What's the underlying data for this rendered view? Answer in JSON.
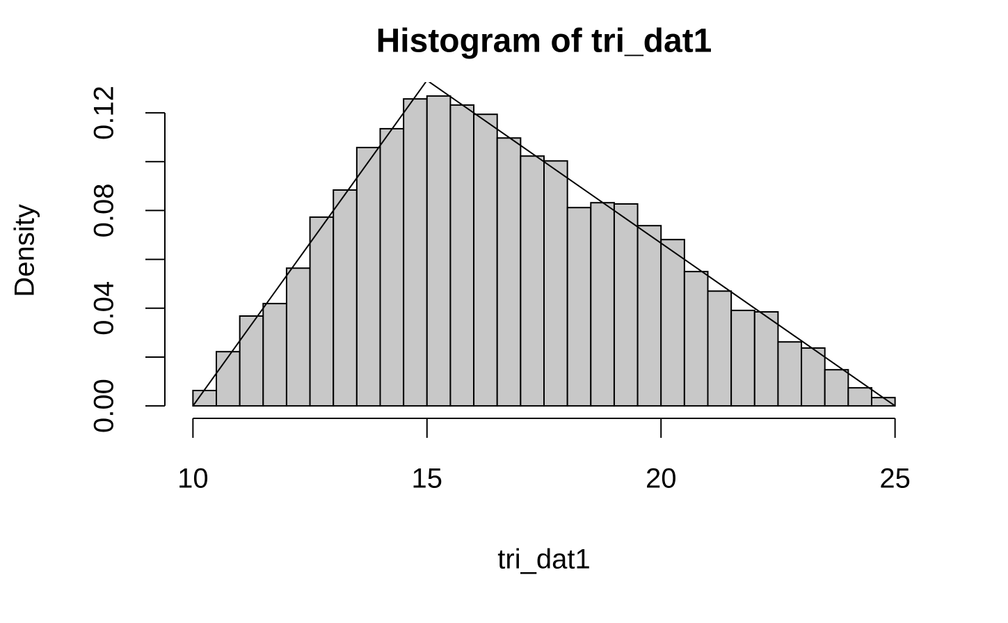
{
  "chart_data": {
    "type": "histogram",
    "title": "Histogram of tri_dat1",
    "xlabel": "tri_dat1",
    "ylabel": "Density",
    "bins": [
      10,
      10.5,
      11,
      11.5,
      12,
      12.5,
      13,
      13.5,
      14,
      14.5,
      15,
      15.5,
      16,
      16.5,
      17,
      17.5,
      18,
      18.5,
      19,
      19.5,
      20,
      20.5,
      21,
      21.5,
      22,
      22.5,
      23,
      23.5,
      24,
      24.5,
      25
    ],
    "values": [
      0.0063,
      0.0222,
      0.0368,
      0.0419,
      0.0564,
      0.0773,
      0.0884,
      0.1058,
      0.1135,
      0.1257,
      0.1269,
      0.1232,
      0.1194,
      0.1097,
      0.1023,
      0.1003,
      0.0812,
      0.0832,
      0.0827,
      0.0738,
      0.0681,
      0.055,
      0.047,
      0.0391,
      0.0385,
      0.0262,
      0.0237,
      0.0148,
      0.0074,
      0.0034
    ],
    "color": "#c8c8c8",
    "density_line": {
      "x": [
        10,
        15,
        25
      ],
      "y": [
        0,
        0.1333,
        0
      ],
      "color": "#000000"
    },
    "xlim": [
      9.4,
      25.6
    ],
    "ylim": [
      -0.0051,
      0.132
    ],
    "xticks": [
      10,
      15,
      20,
      25
    ],
    "yticks": [
      {
        "value": 0,
        "label": "0.00"
      },
      {
        "value": 0.02,
        "label": null
      },
      {
        "value": 0.04,
        "label": "0.04"
      },
      {
        "value": 0.06,
        "label": null
      },
      {
        "value": 0.08,
        "label": "0.08"
      },
      {
        "value": 0.1,
        "label": null
      },
      {
        "value": 0.12,
        "label": "0.12"
      }
    ],
    "grid": false
  }
}
